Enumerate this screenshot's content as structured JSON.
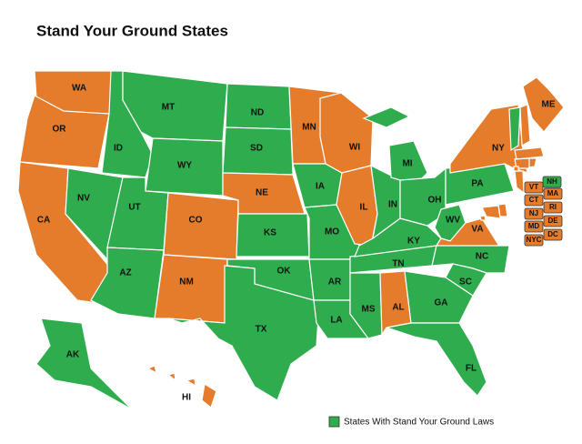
{
  "header": {
    "title": "Stand Your Ground States"
  },
  "colors": {
    "stand_your_ground": "#2fac4e",
    "no_law": "#e57c2b"
  },
  "states": [
    {
      "label": "WA",
      "stand_your_ground": false
    },
    {
      "label": "OR",
      "stand_your_ground": false
    },
    {
      "label": "CA",
      "stand_your_ground": false
    },
    {
      "label": "NV",
      "stand_your_ground": true
    },
    {
      "label": "ID",
      "stand_your_ground": true
    },
    {
      "label": "MT",
      "stand_your_ground": true
    },
    {
      "label": "WY",
      "stand_your_ground": true
    },
    {
      "label": "UT",
      "stand_your_ground": true
    },
    {
      "label": "AZ",
      "stand_your_ground": true
    },
    {
      "label": "CO",
      "stand_your_ground": false
    },
    {
      "label": "NM",
      "stand_your_ground": false
    },
    {
      "label": "ND",
      "stand_your_ground": true
    },
    {
      "label": "SD",
      "stand_your_ground": true
    },
    {
      "label": "NE",
      "stand_your_ground": false
    },
    {
      "label": "KS",
      "stand_your_ground": true
    },
    {
      "label": "OK",
      "stand_your_ground": true
    },
    {
      "label": "TX",
      "stand_your_ground": true
    },
    {
      "label": "MN",
      "stand_your_ground": false
    },
    {
      "label": "IA",
      "stand_your_ground": true
    },
    {
      "label": "MO",
      "stand_your_ground": true
    },
    {
      "label": "AR",
      "stand_your_ground": true
    },
    {
      "label": "LA",
      "stand_your_ground": true
    },
    {
      "label": "WI",
      "stand_your_ground": false
    },
    {
      "label": "IL",
      "stand_your_ground": false
    },
    {
      "label": "MS",
      "stand_your_ground": true
    },
    {
      "label": "AL",
      "stand_your_ground": false
    },
    {
      "label": "TN",
      "stand_your_ground": true
    },
    {
      "label": "KY",
      "stand_your_ground": true
    },
    {
      "label": "IN",
      "stand_your_ground": true
    },
    {
      "label": "MI",
      "stand_your_ground": true
    },
    {
      "label": "OH",
      "stand_your_ground": true
    },
    {
      "label": "WV",
      "stand_your_ground": true
    },
    {
      "label": "VA",
      "stand_your_ground": false
    },
    {
      "label": "NC",
      "stand_your_ground": true
    },
    {
      "label": "SC",
      "stand_your_ground": true
    },
    {
      "label": "GA",
      "stand_your_ground": true
    },
    {
      "label": "FL",
      "stand_your_ground": true
    },
    {
      "label": "PA",
      "stand_your_ground": true
    },
    {
      "label": "NY",
      "stand_your_ground": false
    },
    {
      "label": "ME",
      "stand_your_ground": false
    },
    {
      "label": "AK",
      "stand_your_ground": true
    },
    {
      "label": "HI",
      "stand_your_ground": false
    }
  ],
  "small_states": [
    {
      "label": "NH",
      "stand_your_ground": true
    },
    {
      "label": "VT",
      "stand_your_ground": false
    },
    {
      "label": "MA",
      "stand_your_ground": false
    },
    {
      "label": "CT",
      "stand_your_ground": false
    },
    {
      "label": "RI",
      "stand_your_ground": false
    },
    {
      "label": "NJ",
      "stand_your_ground": false
    },
    {
      "label": "DE",
      "stand_your_ground": false
    },
    {
      "label": "MD",
      "stand_your_ground": false
    },
    {
      "label": "DC",
      "stand_your_ground": false
    },
    {
      "label": "NYC",
      "stand_your_ground": false
    }
  ],
  "legend": {
    "label": "States With Stand Your Ground Laws"
  }
}
